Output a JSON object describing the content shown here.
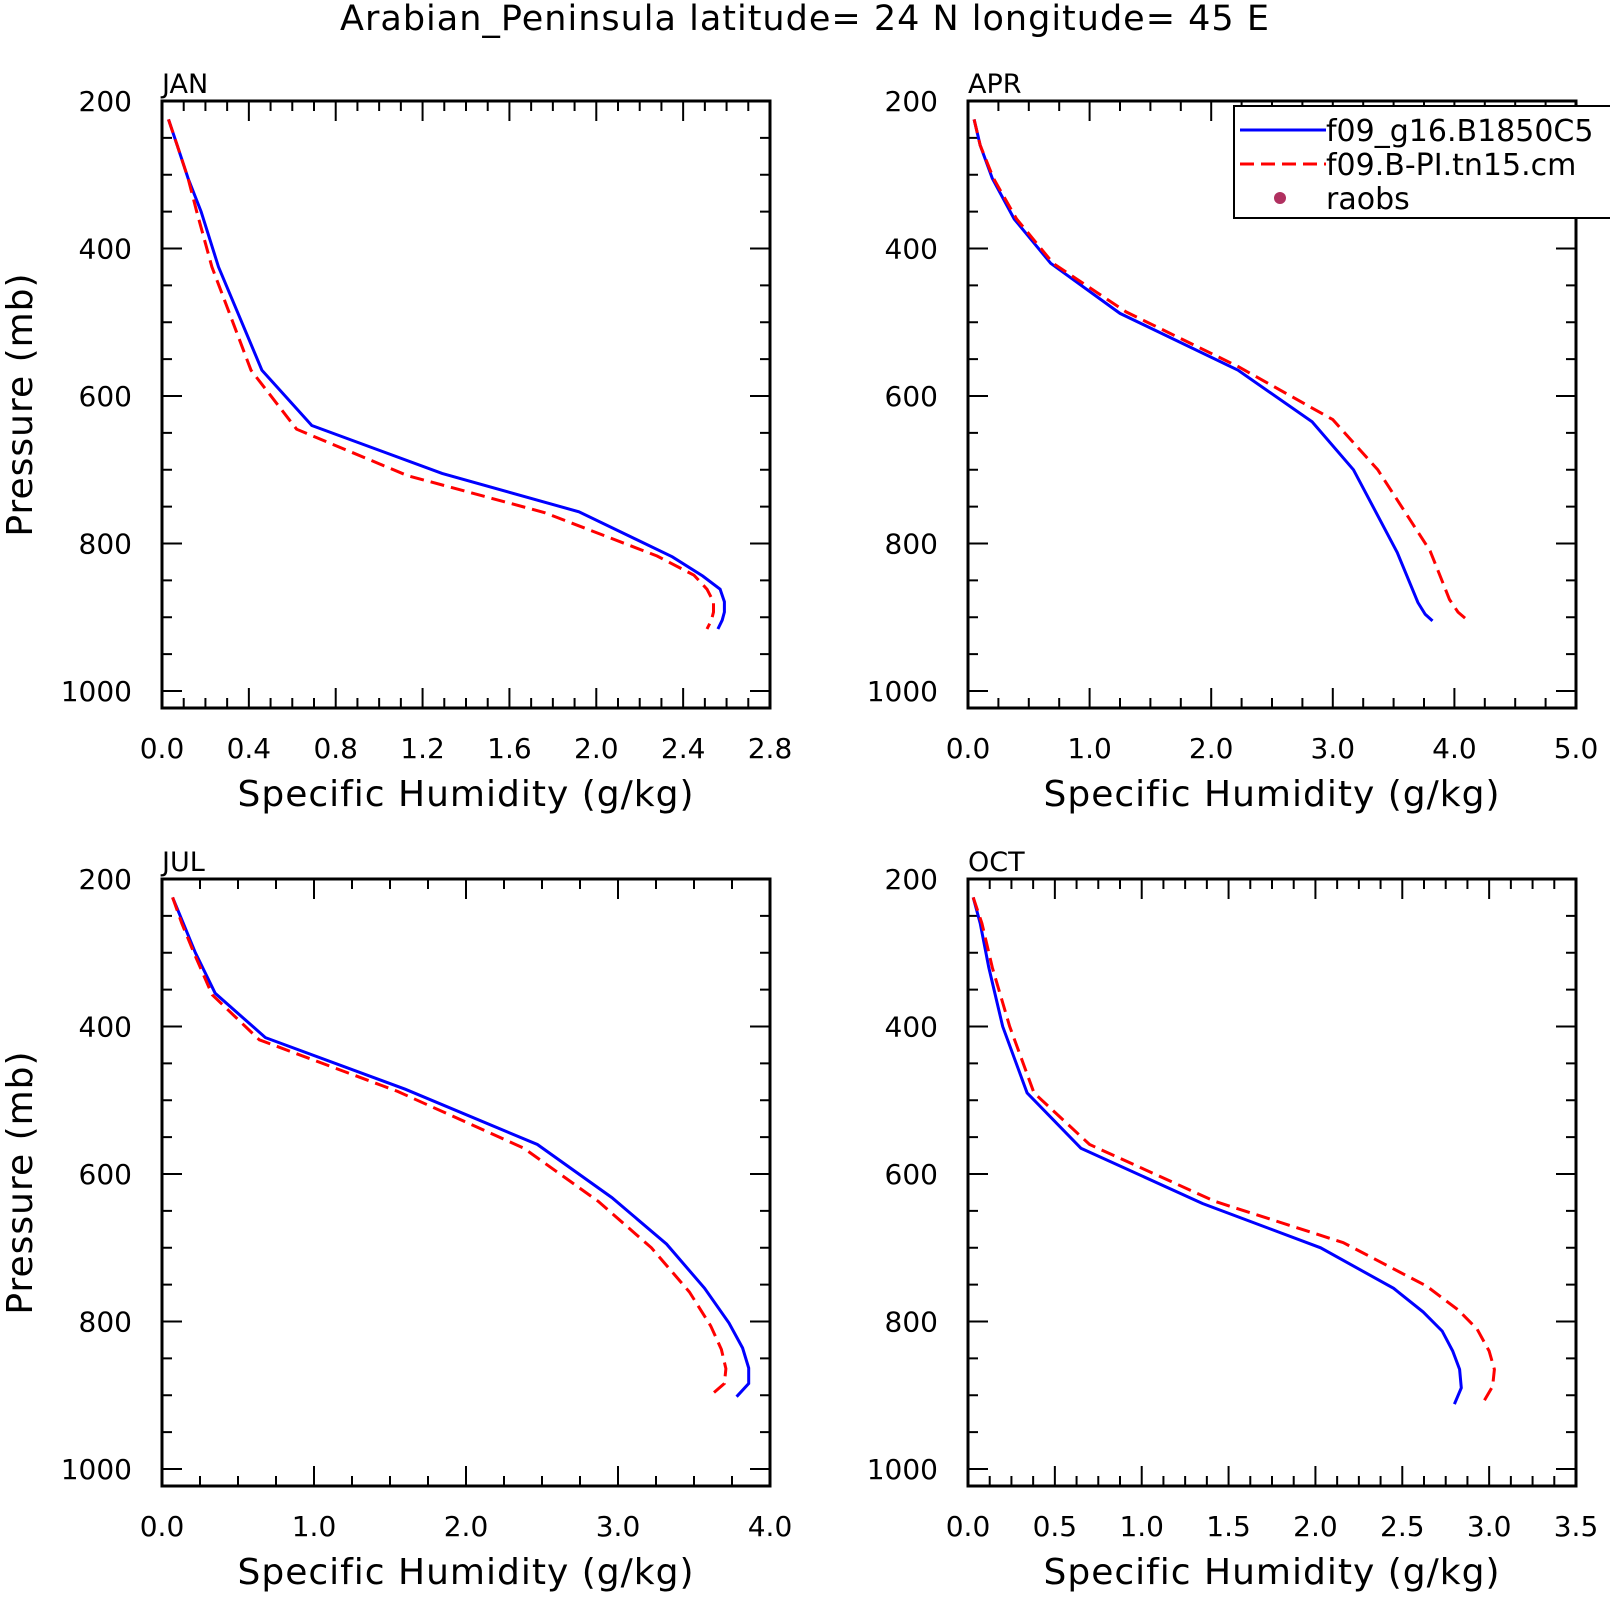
{
  "title": "Arabian_Peninsula  latitude= 24 N longitude= 45 E",
  "legend": {
    "entries": [
      {
        "label": "f09_g16.B1850C5",
        "color": "#0000ff",
        "style": "solid"
      },
      {
        "label": "f09.B-PI.tn15.cm",
        "color": "#ff0000",
        "style": "dashed"
      },
      {
        "label": "raobs",
        "color": "#b03060",
        "style": "dot"
      }
    ],
    "placement": "top-right of APR panel"
  },
  "chart_data": [
    {
      "type": "line",
      "panel_label": "JAN",
      "xlabel": "Specific Humidity (g/kg)",
      "ylabel": "Pressure (mb)",
      "xlim": [
        0,
        2.8
      ],
      "ylim": [
        200,
        1000
      ],
      "y_inverted": true,
      "xticks": [
        0.0,
        0.4,
        0.8,
        1.2,
        1.6,
        2.0,
        2.4,
        2.8
      ],
      "xtick_labels": [
        "0.0",
        "0.4",
        "0.8",
        "1.2",
        "1.6",
        "2.0",
        "2.4",
        "2.8"
      ],
      "yticks": [
        200,
        400,
        600,
        800,
        1000
      ],
      "ytick_labels": [
        "200",
        "400",
        "600",
        "800",
        "1000"
      ],
      "grid": false,
      "series": [
        {
          "name": "f09_g16.B1850C5",
          "color": "#0000ff",
          "dash": false,
          "x": [
            0.03,
            0.07,
            0.12,
            0.18,
            0.26,
            0.46,
            0.69,
            1.29,
            1.92,
            2.35,
            2.49,
            2.57,
            2.59,
            2.59,
            2.58,
            2.56
          ],
          "y": [
            225,
            260,
            305,
            350,
            425,
            565,
            640,
            705,
            757,
            818,
            844,
            862,
            879,
            893,
            904,
            916
          ]
        },
        {
          "name": "f09.B-PI.tn15.cm",
          "color": "#ff0000",
          "dash": true,
          "x": [
            0.03,
            0.07,
            0.12,
            0.16,
            0.23,
            0.41,
            0.62,
            1.13,
            1.76,
            2.28,
            2.45,
            2.51,
            2.54,
            2.54,
            2.53,
            2.51
          ],
          "y": [
            225,
            260,
            305,
            350,
            425,
            565,
            645,
            708,
            758,
            817,
            843,
            862,
            879,
            893,
            904,
            916
          ]
        }
      ]
    },
    {
      "type": "line",
      "panel_label": "APR",
      "xlabel": "Specific Humidity (g/kg)",
      "ylabel": "",
      "xlim": [
        0,
        5.0
      ],
      "ylim": [
        200,
        1000
      ],
      "y_inverted": true,
      "xticks": [
        0.0,
        1.0,
        2.0,
        3.0,
        4.0,
        5.0
      ],
      "xtick_labels": [
        "0.0",
        "1.0",
        "2.0",
        "3.0",
        "4.0",
        "5.0"
      ],
      "yticks": [
        200,
        400,
        600,
        800,
        1000
      ],
      "ytick_labels": [
        "200",
        "400",
        "600",
        "800",
        "1000"
      ],
      "grid": false,
      "series": [
        {
          "name": "f09_g16.B1850C5",
          "color": "#0000ff",
          "dash": false,
          "x": [
            0.05,
            0.1,
            0.2,
            0.38,
            0.68,
            1.25,
            2.22,
            2.83,
            3.17,
            3.53,
            3.7,
            3.76,
            3.82
          ],
          "y": [
            225,
            260,
            305,
            360,
            420,
            488,
            565,
            635,
            700,
            812,
            880,
            896,
            905
          ]
        },
        {
          "name": "f09.B-PI.tn15.cm",
          "color": "#ff0000",
          "dash": true,
          "x": [
            0.05,
            0.1,
            0.21,
            0.4,
            0.7,
            1.3,
            2.22,
            3.0,
            3.37,
            3.8,
            3.96,
            4.03,
            4.1
          ],
          "y": [
            225,
            260,
            305,
            360,
            420,
            486,
            560,
            632,
            700,
            810,
            876,
            893,
            903
          ]
        }
      ]
    },
    {
      "type": "line",
      "panel_label": "JUL",
      "xlabel": "Specific Humidity (g/kg)",
      "ylabel": "Pressure (mb)",
      "xlim": [
        0,
        4.0
      ],
      "ylim": [
        200,
        1000
      ],
      "y_inverted": true,
      "xticks": [
        0.0,
        1.0,
        2.0,
        3.0,
        4.0
      ],
      "xtick_labels": [
        "0.0",
        "1.0",
        "2.0",
        "3.0",
        "4.0"
      ],
      "yticks": [
        200,
        400,
        600,
        800,
        1000
      ],
      "ytick_labels": [
        "200",
        "400",
        "600",
        "800",
        "1000"
      ],
      "grid": false,
      "series": [
        {
          "name": "f09_g16.B1850C5",
          "color": "#0000ff",
          "dash": false,
          "x": [
            0.07,
            0.14,
            0.22,
            0.35,
            0.68,
            1.6,
            2.47,
            2.96,
            3.32,
            3.57,
            3.73,
            3.82,
            3.86,
            3.86,
            3.78
          ],
          "y": [
            225,
            260,
            300,
            355,
            415,
            485,
            560,
            632,
            695,
            755,
            802,
            836,
            863,
            884,
            902
          ]
        },
        {
          "name": "f09.B-PI.tn15.cm",
          "color": "#ff0000",
          "dash": true,
          "x": [
            0.07,
            0.13,
            0.21,
            0.33,
            0.64,
            1.55,
            2.38,
            2.87,
            3.22,
            3.47,
            3.61,
            3.68,
            3.71,
            3.7,
            3.6
          ],
          "y": [
            225,
            260,
            300,
            357,
            418,
            488,
            565,
            637,
            700,
            760,
            806,
            838,
            864,
            884,
            902
          ]
        }
      ]
    },
    {
      "type": "line",
      "panel_label": "OCT",
      "xlabel": "Specific Humidity (g/kg)",
      "ylabel": "",
      "xlim": [
        0,
        3.5
      ],
      "ylim": [
        200,
        1000
      ],
      "y_inverted": true,
      "xticks": [
        0.0,
        0.5,
        1.0,
        1.5,
        2.0,
        2.5,
        3.0,
        3.5
      ],
      "xtick_labels": [
        "0.0",
        "0.5",
        "1.0",
        "1.5",
        "2.0",
        "2.5",
        "3.0",
        "3.5"
      ],
      "yticks": [
        200,
        400,
        600,
        800,
        1000
      ],
      "ytick_labels": [
        "200",
        "400",
        "600",
        "800",
        "1000"
      ],
      "grid": false,
      "series": [
        {
          "name": "f09_g16.B1850C5",
          "color": "#0000ff",
          "dash": false,
          "x": [
            0.03,
            0.07,
            0.12,
            0.2,
            0.34,
            0.65,
            1.35,
            2.03,
            2.45,
            2.62,
            2.73,
            2.79,
            2.83,
            2.84,
            2.8
          ],
          "y": [
            225,
            260,
            320,
            400,
            490,
            565,
            640,
            700,
            755,
            787,
            813,
            840,
            865,
            890,
            912
          ]
        },
        {
          "name": "f09.B-PI.tn15.cm",
          "color": "#ff0000",
          "dash": true,
          "x": [
            0.03,
            0.08,
            0.14,
            0.24,
            0.38,
            0.7,
            1.42,
            2.16,
            2.64,
            2.82,
            2.93,
            3.0,
            3.03,
            3.02,
            2.96
          ],
          "y": [
            225,
            260,
            320,
            400,
            490,
            560,
            637,
            693,
            752,
            784,
            810,
            840,
            865,
            888,
            912
          ]
        }
      ]
    }
  ]
}
